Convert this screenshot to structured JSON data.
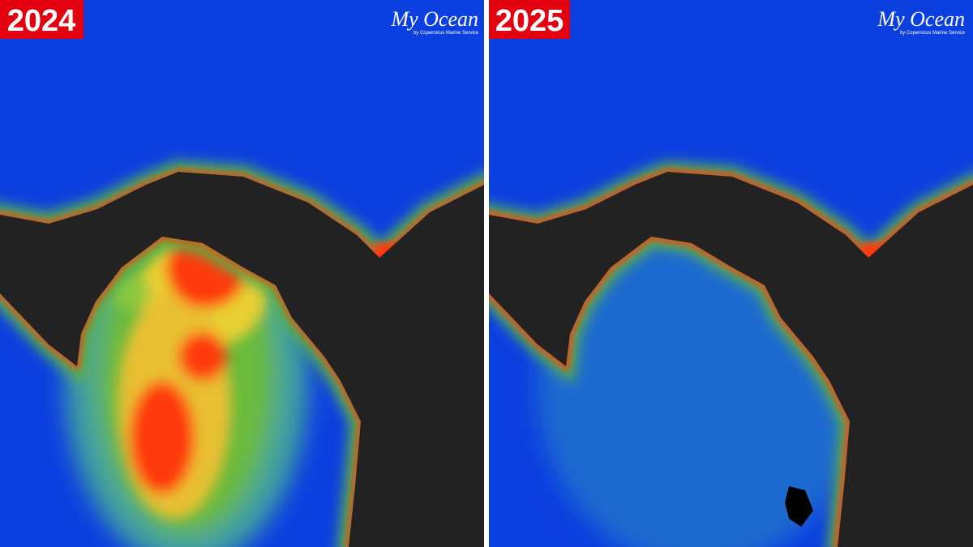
{
  "panels": [
    {
      "year": "2024",
      "logo": "My Ocean",
      "logo_subtitle": "by Copernicus Marine Service"
    },
    {
      "year": "2025",
      "logo": "My Ocean",
      "logo_subtitle": "by Copernicus Marine Service"
    }
  ]
}
